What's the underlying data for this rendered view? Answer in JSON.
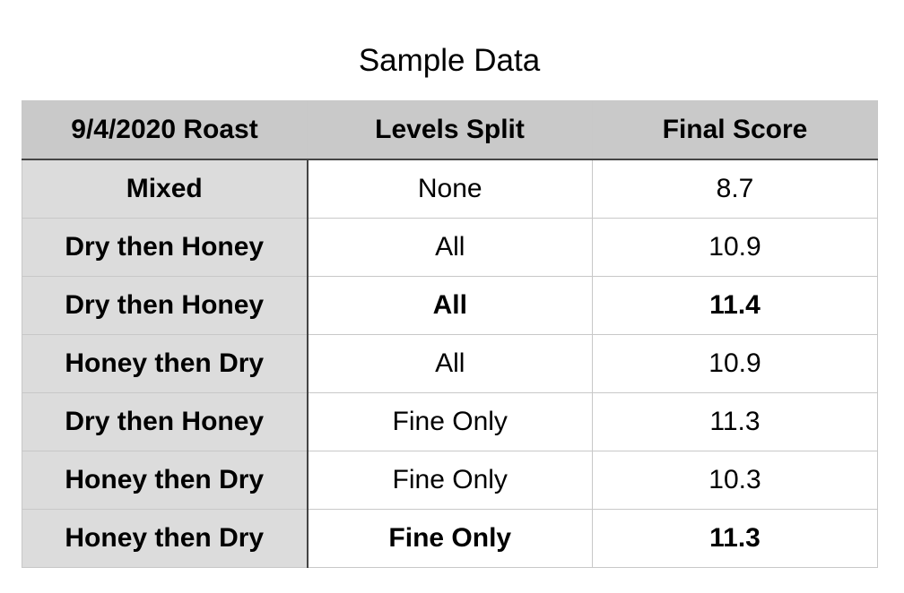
{
  "chart_data": {
    "type": "table",
    "title": "Sample Data",
    "columns": [
      "9/4/2020 Roast",
      "Levels Split",
      "Final Score"
    ],
    "rows": [
      {
        "roast": "Mixed",
        "levels_split": "None",
        "final_score": "8.7",
        "highlight": false
      },
      {
        "roast": "Dry then Honey",
        "levels_split": "All",
        "final_score": "10.9",
        "highlight": false
      },
      {
        "roast": "Dry then Honey",
        "levels_split": "All",
        "final_score": "11.4",
        "highlight": true
      },
      {
        "roast": "Honey then Dry",
        "levels_split": "All",
        "final_score": "10.9",
        "highlight": false
      },
      {
        "roast": "Dry then Honey",
        "levels_split": "Fine Only",
        "final_score": "11.3",
        "highlight": false
      },
      {
        "roast": "Honey then Dry",
        "levels_split": "Fine Only",
        "final_score": "10.3",
        "highlight": false
      },
      {
        "roast": "Honey then Dry",
        "levels_split": "Fine Only",
        "final_score": "11.3",
        "highlight": true
      }
    ]
  },
  "colors": {
    "header_bg": "#c9c9c9",
    "row_header_bg": "#dcdcdc",
    "cell_bg": "#ffffff",
    "grid_line": "#c8c8c8",
    "separator_line": "#444444"
  }
}
